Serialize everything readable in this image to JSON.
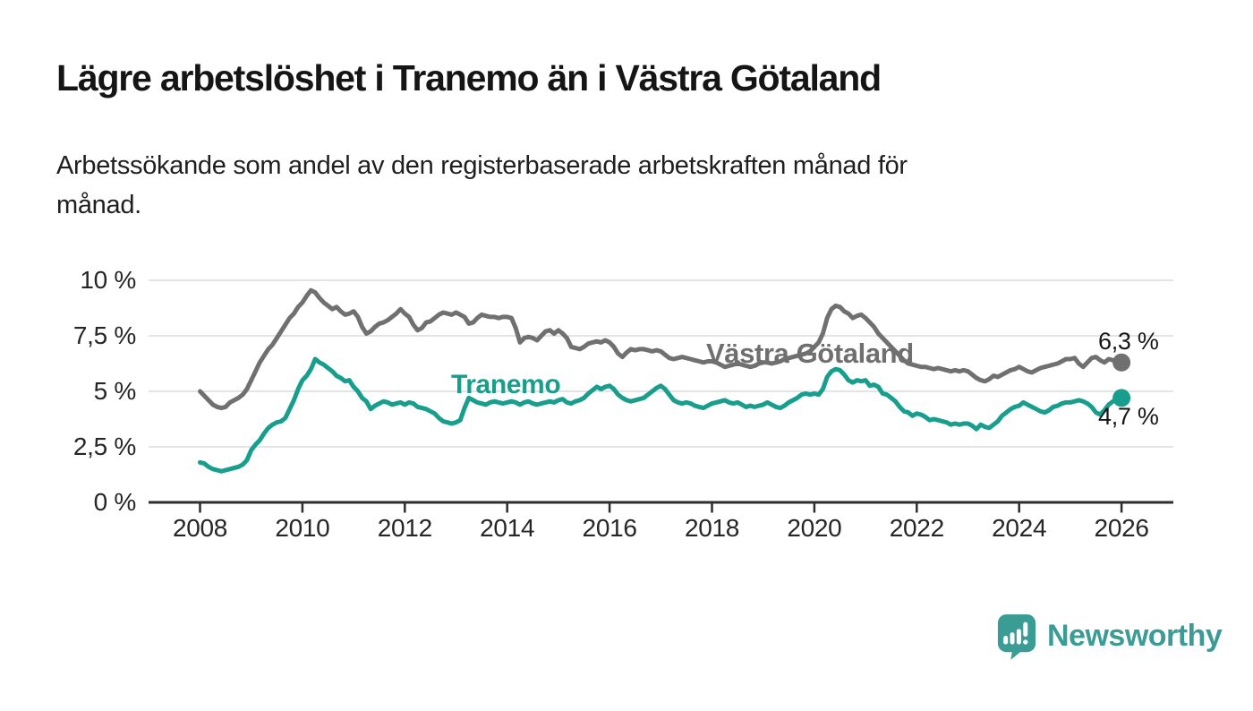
{
  "header": {
    "title": "Lägre arbetslöshet i Tranemo än i Västra Götaland",
    "subtitle": "Arbetssökande som andel av den registerbaserade arbetskraften månad för\nmånad."
  },
  "chart_data": {
    "type": "line",
    "title": "Lägre arbetslöshet i Tranemo än i Västra Götaland",
    "subtitle": "Arbetssökande som andel av den registerbaserade arbetskraften månad för månad.",
    "unit": "%",
    "x_start_year": 2008,
    "x_step_months": 1,
    "x_ticks": [
      2008,
      2010,
      2012,
      2014,
      2016,
      2018,
      2020,
      2022,
      2024,
      2026
    ],
    "y_ticks": [
      {
        "value": 10,
        "label": "10 %"
      },
      {
        "value": 7.5,
        "label": "7,5 %"
      },
      {
        "value": 5,
        "label": "5 %"
      },
      {
        "value": 2.5,
        "label": "2,5 %"
      },
      {
        "value": 0,
        "label": "0 %"
      }
    ],
    "ylim": [
      0,
      10.5
    ],
    "grid": "horizontal",
    "legend_position": "inline-labels",
    "series": [
      {
        "name": "Västra Götaland",
        "color": "#707070",
        "end_label": "6,3 %",
        "end_value": 6.3,
        "values": [
          5.0,
          4.8,
          4.6,
          4.4,
          4.3,
          4.25,
          4.3,
          4.5,
          4.6,
          4.7,
          4.85,
          5.1,
          5.5,
          5.9,
          6.3,
          6.6,
          6.9,
          7.1,
          7.4,
          7.7,
          8.0,
          8.3,
          8.5,
          8.8,
          9.0,
          9.3,
          9.55,
          9.45,
          9.2,
          9.0,
          8.85,
          8.7,
          8.8,
          8.6,
          8.45,
          8.5,
          8.6,
          8.35,
          7.9,
          7.6,
          7.7,
          7.9,
          8.05,
          8.1,
          8.2,
          8.35,
          8.5,
          8.7,
          8.5,
          8.35,
          8.0,
          7.75,
          7.85,
          8.1,
          8.15,
          8.3,
          8.45,
          8.55,
          8.5,
          8.45,
          8.55,
          8.45,
          8.35,
          8.05,
          8.1,
          8.3,
          8.45,
          8.4,
          8.35,
          8.35,
          8.3,
          8.35,
          8.35,
          8.3,
          7.85,
          7.2,
          7.4,
          7.45,
          7.4,
          7.3,
          7.5,
          7.7,
          7.75,
          7.6,
          7.75,
          7.6,
          7.4,
          7.0,
          6.95,
          6.9,
          7.0,
          7.15,
          7.2,
          7.25,
          7.2,
          7.3,
          7.2,
          7.0,
          6.7,
          6.55,
          6.75,
          6.9,
          6.85,
          6.9,
          6.9,
          6.85,
          6.8,
          6.85,
          6.8,
          6.65,
          6.5,
          6.45,
          6.5,
          6.55,
          6.5,
          6.45,
          6.4,
          6.35,
          6.3,
          6.35,
          6.35,
          6.3,
          6.2,
          6.1,
          6.15,
          6.2,
          6.25,
          6.2,
          6.15,
          6.1,
          6.15,
          6.25,
          6.3,
          6.3,
          6.25,
          6.3,
          6.35,
          6.45,
          6.5,
          6.55,
          6.6,
          6.65,
          6.7,
          6.8,
          7.0,
          7.2,
          7.6,
          8.3,
          8.7,
          8.85,
          8.8,
          8.6,
          8.5,
          8.3,
          8.4,
          8.45,
          8.3,
          8.1,
          7.9,
          7.6,
          7.4,
          7.2,
          7.0,
          6.8,
          6.6,
          6.4,
          6.25,
          6.2,
          6.15,
          6.1,
          6.1,
          6.05,
          6.0,
          6.05,
          6.0,
          5.95,
          5.9,
          5.95,
          5.9,
          5.95,
          5.9,
          5.75,
          5.6,
          5.5,
          5.45,
          5.55,
          5.7,
          5.65,
          5.75,
          5.85,
          5.95,
          6.0,
          6.1,
          6.0,
          5.9,
          5.85,
          5.95,
          6.05,
          6.1,
          6.15,
          6.2,
          6.25,
          6.35,
          6.45,
          6.45,
          6.5,
          6.25,
          6.1,
          6.3,
          6.5,
          6.55,
          6.4,
          6.3,
          6.45,
          6.4,
          6.35,
          6.3
        ]
      },
      {
        "name": "Tranemo",
        "color": "#179E8C",
        "end_label": "4,7 %",
        "end_value": 4.7,
        "values": [
          1.8,
          1.75,
          1.6,
          1.5,
          1.45,
          1.4,
          1.45,
          1.5,
          1.55,
          1.6,
          1.7,
          1.9,
          2.35,
          2.6,
          2.8,
          3.1,
          3.35,
          3.5,
          3.6,
          3.65,
          3.8,
          4.2,
          4.6,
          5.1,
          5.5,
          5.7,
          6.0,
          6.45,
          6.3,
          6.2,
          6.05,
          5.9,
          5.7,
          5.6,
          5.45,
          5.5,
          5.2,
          5.0,
          4.7,
          4.55,
          4.2,
          4.35,
          4.45,
          4.55,
          4.5,
          4.4,
          4.45,
          4.5,
          4.4,
          4.5,
          4.45,
          4.3,
          4.25,
          4.2,
          4.1,
          4.0,
          3.8,
          3.65,
          3.6,
          3.55,
          3.6,
          3.7,
          4.25,
          4.7,
          4.6,
          4.5,
          4.45,
          4.4,
          4.5,
          4.55,
          4.5,
          4.45,
          4.5,
          4.55,
          4.5,
          4.4,
          4.5,
          4.55,
          4.45,
          4.4,
          4.45,
          4.5,
          4.55,
          4.5,
          4.6,
          4.65,
          4.5,
          4.45,
          4.55,
          4.6,
          4.7,
          4.9,
          5.05,
          5.2,
          5.1,
          5.2,
          5.25,
          5.1,
          4.85,
          4.7,
          4.6,
          4.55,
          4.6,
          4.65,
          4.7,
          4.85,
          5.0,
          5.15,
          5.25,
          5.1,
          4.85,
          4.6,
          4.5,
          4.45,
          4.5,
          4.45,
          4.35,
          4.3,
          4.25,
          4.35,
          4.45,
          4.5,
          4.55,
          4.6,
          4.5,
          4.45,
          4.5,
          4.4,
          4.3,
          4.35,
          4.3,
          4.35,
          4.4,
          4.5,
          4.4,
          4.3,
          4.25,
          4.35,
          4.5,
          4.6,
          4.7,
          4.85,
          4.9,
          4.85,
          4.9,
          4.85,
          5.1,
          5.65,
          5.9,
          6.0,
          5.95,
          5.75,
          5.5,
          5.4,
          5.5,
          5.45,
          5.5,
          5.25,
          5.3,
          5.2,
          4.9,
          4.85,
          4.7,
          4.55,
          4.3,
          4.1,
          4.05,
          3.9,
          4.0,
          3.95,
          3.85,
          3.7,
          3.75,
          3.7,
          3.65,
          3.6,
          3.5,
          3.55,
          3.5,
          3.55,
          3.55,
          3.45,
          3.3,
          3.5,
          3.4,
          3.35,
          3.5,
          3.65,
          3.9,
          4.05,
          4.2,
          4.3,
          4.35,
          4.5,
          4.4,
          4.3,
          4.2,
          4.1,
          4.05,
          4.15,
          4.3,
          4.35,
          4.45,
          4.5,
          4.5,
          4.55,
          4.6,
          4.55,
          4.45,
          4.3,
          4.05,
          3.95,
          4.15,
          4.4,
          4.55,
          4.65,
          4.7
        ]
      }
    ],
    "colors": {
      "grid": "#DBDBDB",
      "axis": "#2E2E2E",
      "tick_text": "#262626"
    }
  },
  "branding": {
    "name": "Newsworthy",
    "logo_color": "#3B9C95"
  }
}
